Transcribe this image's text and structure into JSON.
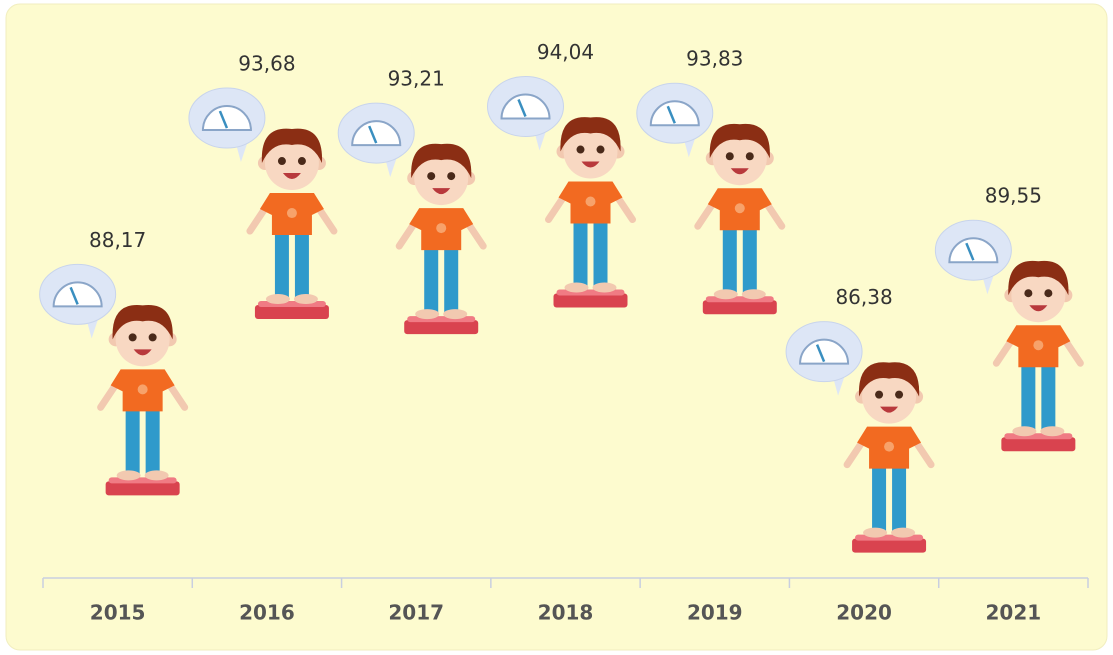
{
  "chart_data": {
    "type": "pictograph",
    "categories": [
      "2015",
      "2016",
      "2017",
      "2018",
      "2019",
      "2020",
      "2021"
    ],
    "values": [
      88.17,
      93.68,
      93.21,
      94.04,
      93.83,
      86.38,
      89.55
    ],
    "value_labels": [
      "88,17",
      "93,68",
      "93,21",
      "94,04",
      "93,83",
      "86,38",
      "89,55"
    ],
    "ylim": [
      85.4,
      95.4
    ]
  }
}
